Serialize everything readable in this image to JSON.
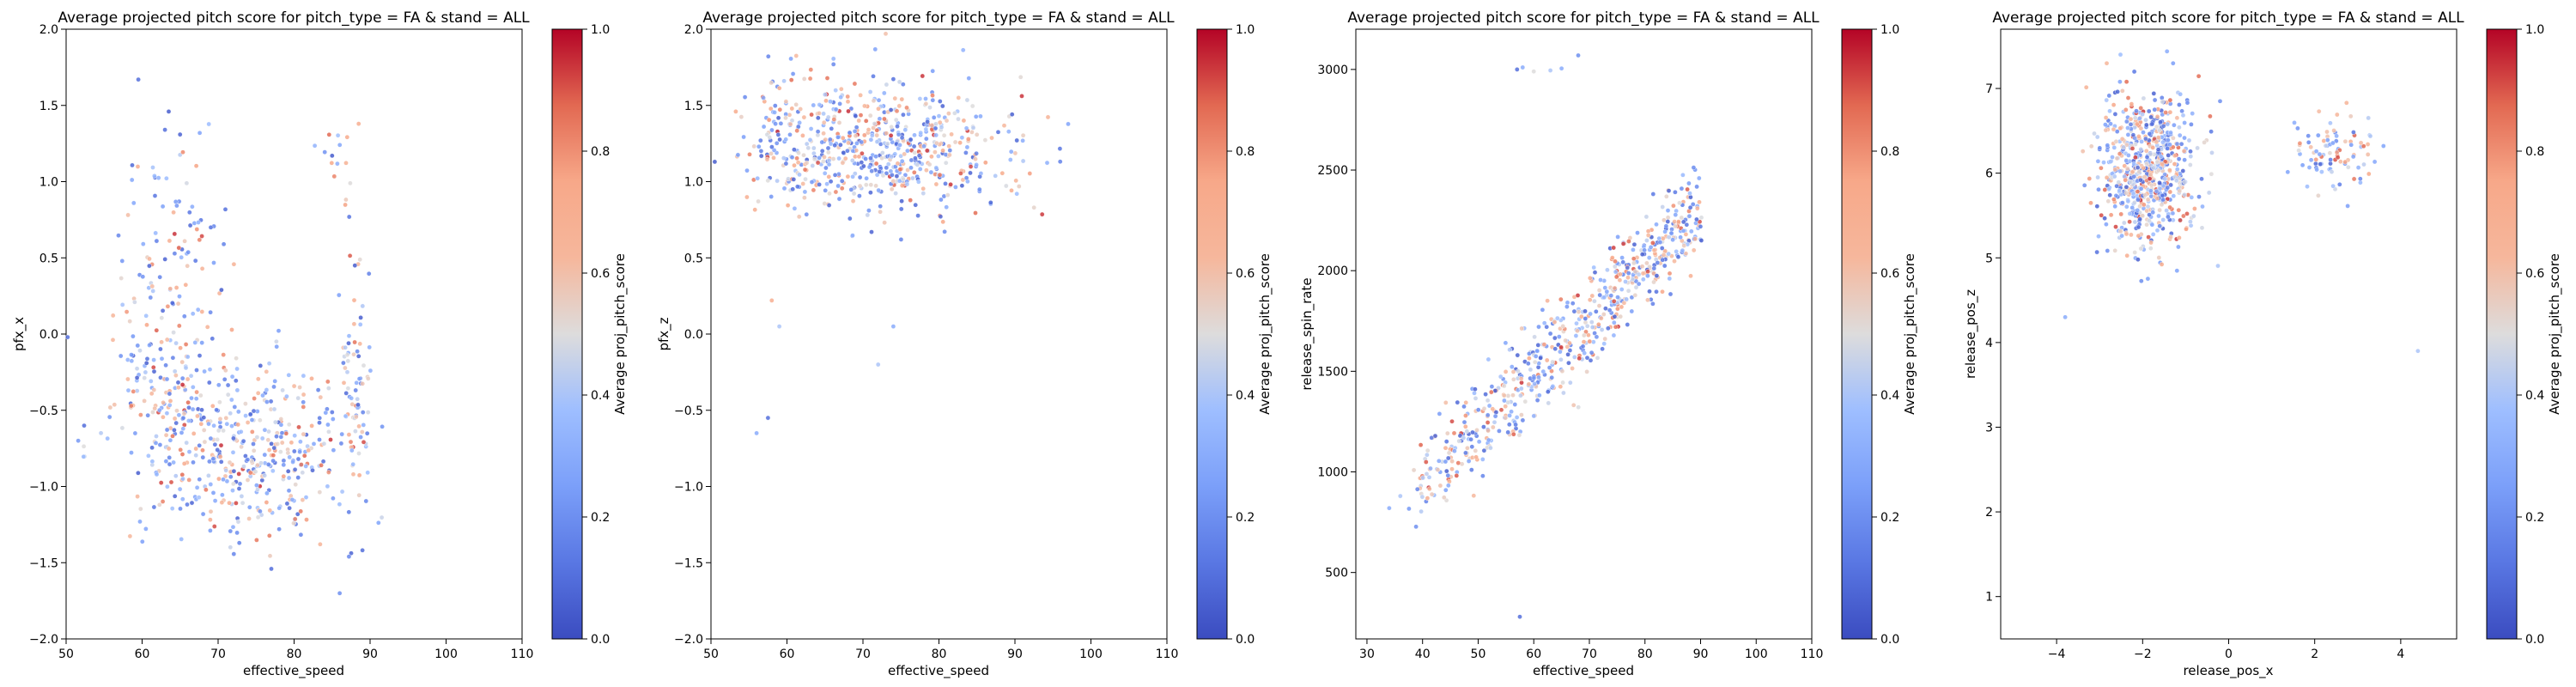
{
  "chart_data": [
    {
      "type": "scatter",
      "title": "Average projected pitch score for pitch_type = FA & stand = ALL",
      "xlabel": "effective_speed",
      "ylabel": "pfx_x",
      "xlim": [
        50,
        110
      ],
      "ylim": [
        -2.0,
        2.0
      ],
      "xticks": [
        "50",
        "60",
        "70",
        "80",
        "90",
        "100",
        "110"
      ],
      "yticks": [
        "−2.0",
        "−1.5",
        "−1.0",
        "−0.5",
        "0.0",
        "0.5",
        "1.0",
        "1.5",
        "2.0"
      ],
      "grid": false,
      "colorbar": {
        "label": "Average proj_pitch_score",
        "range": [
          0.0,
          1.0
        ],
        "ticks": [
          "0.0",
          "0.2",
          "0.4",
          "0.6",
          "0.8",
          "1.0"
        ]
      },
      "clusters": [
        {
          "x": 74,
          "y": -0.75,
          "sx": 7,
          "sy": 0.28,
          "n": 420
        },
        {
          "x": 63,
          "y": -0.3,
          "sx": 4,
          "sy": 0.45,
          "n": 160
        },
        {
          "x": 88,
          "y": -0.3,
          "sx": 1.2,
          "sy": 0.4,
          "n": 70
        },
        {
          "x": 64,
          "y": 0.7,
          "sx": 4,
          "sy": 0.35,
          "n": 70
        },
        {
          "x": 86,
          "y": 1.1,
          "sx": 1.5,
          "sy": 0.15,
          "n": 14
        }
      ],
      "points": [
        {
          "x": 59.5,
          "y": 1.67,
          "c": 0.1
        },
        {
          "x": 63.5,
          "y": 1.46,
          "c": 0.05
        },
        {
          "x": 63,
          "y": 1.34,
          "c": 0.1
        },
        {
          "x": 77,
          "y": -1.54,
          "c": 0.1
        },
        {
          "x": 86,
          "y": -1.7,
          "c": 0.2
        },
        {
          "x": 50.2,
          "y": -0.02,
          "c": 0.1
        },
        {
          "x": 88,
          "y": 0.45,
          "c": 0.05
        },
        {
          "x": 85,
          "y": 1.17,
          "c": 0.05
        },
        {
          "x": 88.5,
          "y": 1.38,
          "c": 0.7
        }
      ]
    },
    {
      "type": "scatter",
      "title": "Average projected pitch score for pitch_type = FA & stand = ALL",
      "xlabel": "effective_speed",
      "ylabel": "pfx_z",
      "xlim": [
        50,
        110
      ],
      "ylim": [
        -2.0,
        2.0
      ],
      "xticks": [
        "50",
        "60",
        "70",
        "80",
        "90",
        "100",
        "110"
      ],
      "yticks": [
        "−2.0",
        "−1.5",
        "−1.0",
        "−0.5",
        "0.0",
        "0.5",
        "1.0",
        "1.5",
        "2.0"
      ],
      "grid": false,
      "colorbar": {
        "label": "Average proj_pitch_score",
        "range": [
          0.0,
          1.0
        ],
        "ticks": [
          "0.0",
          "0.2",
          "0.4",
          "0.6",
          "0.8",
          "1.0"
        ]
      },
      "clusters": [
        {
          "x": 73,
          "y": 1.2,
          "sx": 8,
          "sy": 0.2,
          "n": 600
        },
        {
          "x": 60,
          "y": 1.4,
          "sx": 3,
          "sy": 0.25,
          "n": 80
        }
      ],
      "points": [
        {
          "x": 57.5,
          "y": -0.55,
          "c": 0.1
        },
        {
          "x": 56,
          "y": -0.65,
          "c": 0.3
        },
        {
          "x": 58,
          "y": 0.22,
          "c": 0.7
        },
        {
          "x": 59,
          "y": 0.05,
          "c": 0.4
        },
        {
          "x": 50.5,
          "y": 1.13,
          "c": 0.05
        },
        {
          "x": 74,
          "y": 0.05,
          "c": 0.3
        },
        {
          "x": 72,
          "y": -0.2,
          "c": 0.4
        },
        {
          "x": 73,
          "y": 1.97,
          "c": 0.6
        }
      ]
    },
    {
      "type": "scatter",
      "title": "Average projected pitch score for pitch_type = FA & stand = ALL",
      "xlabel": "effective_speed",
      "ylabel": "release_spin_rate",
      "xlim": [
        28,
        110
      ],
      "ylim": [
        170,
        3200
      ],
      "xticks": [
        "30",
        "40",
        "50",
        "60",
        "70",
        "80",
        "90",
        "100",
        "110"
      ],
      "xtick_values": [
        30,
        40,
        50,
        60,
        70,
        80,
        90,
        100,
        110
      ],
      "yticks": [
        "500",
        "1000",
        "1500",
        "2000",
        "2500",
        "3000"
      ],
      "ytick_values": [
        500,
        1000,
        1500,
        2000,
        2500,
        3000
      ],
      "grid": false,
      "colorbar": {
        "label": "Average proj_pitch_score",
        "range": [
          0.0,
          1.0
        ],
        "ticks": [
          "0.0",
          "0.2",
          "0.4",
          "0.6",
          "0.8",
          "1.0"
        ]
      },
      "trend": {
        "x0": 38,
        "y0": 900,
        "x1": 90,
        "y1": 2300,
        "spread": 110,
        "n": 650
      },
      "points": [
        {
          "x": 57.5,
          "y": 280,
          "c": 0.1
        },
        {
          "x": 57,
          "y": 3000,
          "c": 0.1
        },
        {
          "x": 58,
          "y": 3010,
          "c": 0.3
        },
        {
          "x": 60,
          "y": 2990,
          "c": 0.5
        },
        {
          "x": 63,
          "y": 2995,
          "c": 0.4
        },
        {
          "x": 65,
          "y": 3005,
          "c": 0.3
        },
        {
          "x": 68,
          "y": 3070,
          "c": 0.2
        },
        {
          "x": 34,
          "y": 820,
          "c": 0.3
        },
        {
          "x": 36,
          "y": 880,
          "c": 0.4
        }
      ]
    },
    {
      "type": "scatter",
      "title": "Average projected pitch score for pitch_type = FA & stand = ALL",
      "xlabel": "release_pos_x",
      "ylabel": "release_pos_z",
      "xlim": [
        -5.3,
        5.3
      ],
      "ylim": [
        0.5,
        7.7
      ],
      "xticks": [
        "−4",
        "−2",
        "0",
        "2",
        "4"
      ],
      "xtick_values": [
        -4,
        -2,
        0,
        2,
        4
      ],
      "yticks": [
        "1",
        "2",
        "3",
        "4",
        "5",
        "6",
        "7"
      ],
      "ytick_values": [
        1,
        2,
        3,
        4,
        5,
        6,
        7
      ],
      "grid": false,
      "colorbar": {
        "label": "Average proj_pitch_score",
        "range": [
          0.0,
          1.0
        ],
        "ticks": [
          "0.0",
          "0.2",
          "0.4",
          "0.6",
          "0.8",
          "1.0"
        ]
      },
      "clusters": [
        {
          "x": -1.9,
          "y": 6.0,
          "sx": 0.55,
          "sy": 0.45,
          "n": 700
        },
        {
          "x": 2.4,
          "y": 6.2,
          "sx": 0.5,
          "sy": 0.25,
          "n": 90
        }
      ],
      "points": [
        {
          "x": 4.4,
          "y": 3.9,
          "c": 0.4
        },
        {
          "x": -3.8,
          "y": 4.3,
          "c": 0.3
        },
        {
          "x": -0.2,
          "y": 6.85,
          "c": 0.2
        }
      ]
    }
  ]
}
